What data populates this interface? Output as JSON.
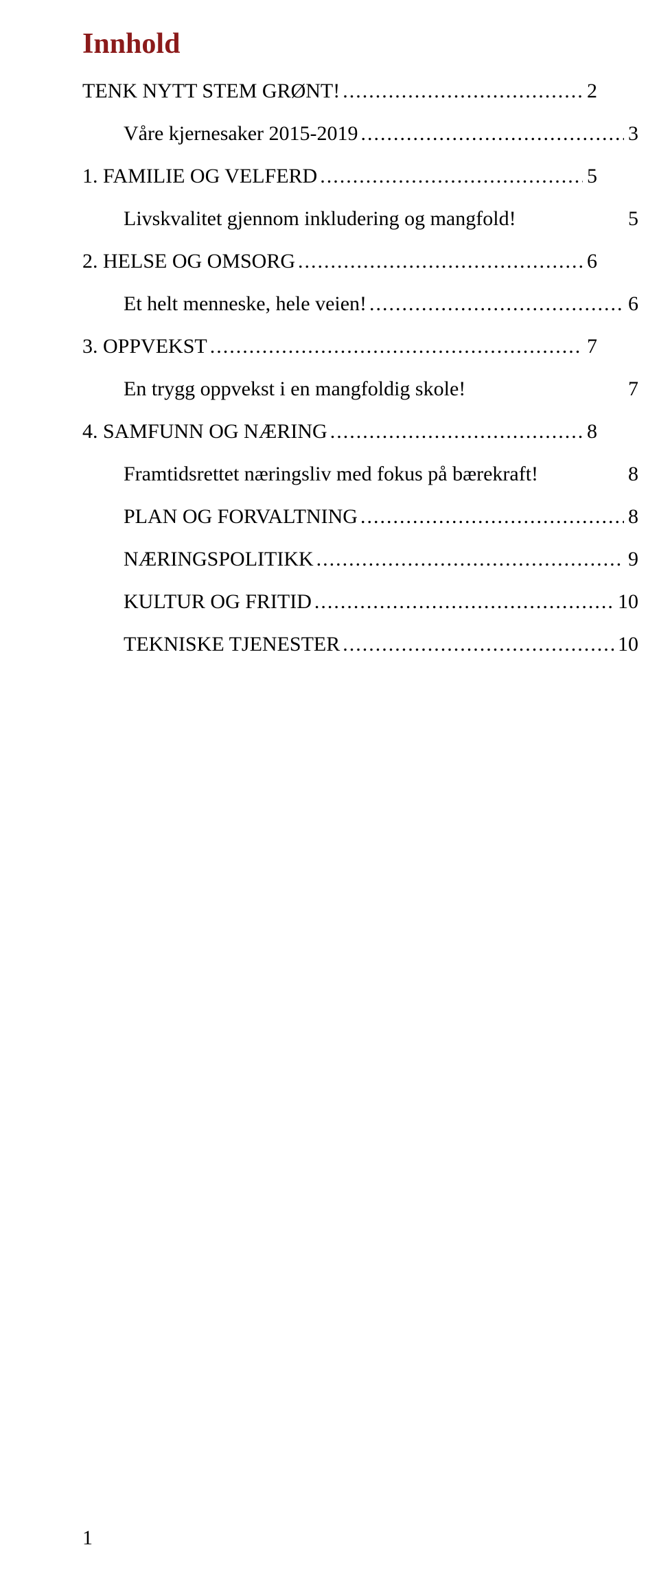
{
  "title": "Innhold",
  "entries": [
    {
      "label": "TENK NYTT STEM GRØNT!",
      "page": "2",
      "indent": false,
      "leader": true,
      "extra": null
    },
    {
      "label": "Våre kjernesaker 2015-2019",
      "page": "3",
      "indent": true,
      "leader": true,
      "extra": null
    },
    {
      "label": "1. FAMILIE OG VELFERD",
      "page": "5",
      "indent": false,
      "leader": true,
      "extra": null
    },
    {
      "label": "Livskvalitet gjennom inkludering og mangfold!",
      "page": null,
      "indent": true,
      "leader": false,
      "extra": "5"
    },
    {
      "label": "2. HELSE OG OMSORG",
      "page": "6",
      "indent": false,
      "leader": true,
      "extra": null
    },
    {
      "label": "Et helt menneske, hele veien!",
      "page": "6",
      "indent": true,
      "leader": true,
      "extra": null
    },
    {
      "label": "3. OPPVEKST",
      "page": "7",
      "indent": false,
      "leader": true,
      "extra": null
    },
    {
      "label": "En trygg oppvekst i en mangfoldig skole!",
      "page": null,
      "indent": true,
      "leader": false,
      "extra": "7"
    },
    {
      "label": "4. SAMFUNN OG NÆRING",
      "page": "8",
      "indent": false,
      "leader": true,
      "extra": null
    },
    {
      "label": "Framtidsrettet næringsliv med fokus på bærekraft!",
      "page": "8",
      "indent": true,
      "leader": false,
      "extra": null
    },
    {
      "label": "PLAN OG FORVALTNING",
      "page": "8",
      "indent": true,
      "leader": true,
      "extra": null
    },
    {
      "label": "NÆRINGSPOLITIKK",
      "page": "9",
      "indent": true,
      "leader": true,
      "extra": null
    },
    {
      "label": "KULTUR OG FRITID",
      "page": "10",
      "indent": true,
      "leader": true,
      "extra": null
    },
    {
      "label": "TEKNISKE TJENESTER",
      "page": "10",
      "indent": true,
      "leader": true,
      "extra": null
    }
  ],
  "page_number": "1",
  "colors": {
    "title": "#8b1a1a",
    "text": "#000000",
    "background": "#ffffff"
  },
  "typography": {
    "title_fontsize": 42,
    "body_fontsize": 30,
    "font_family": "Georgia, serif"
  }
}
